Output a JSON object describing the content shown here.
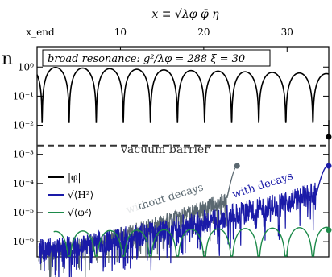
{
  "chart_data": {
    "type": "line",
    "title": "",
    "top_axis": {
      "label": "x ≡ √λφ φ̄ η",
      "ticks": [
        {
          "value": 0,
          "label": "x_end"
        },
        {
          "value": 10,
          "label": "10"
        },
        {
          "value": 20,
          "label": "20"
        },
        {
          "value": 30,
          "label": "30"
        }
      ],
      "xlim": [
        0,
        35
      ]
    },
    "yaxis": {
      "scale": "log",
      "ylim": [
        3e-07,
        5
      ],
      "ticks": [
        {
          "value": 1,
          "label": "10⁰"
        },
        {
          "value": 0.1,
          "label": "10⁻¹"
        },
        {
          "value": 0.01,
          "label": "10⁻²"
        },
        {
          "value": 0.001,
          "label": "10⁻³"
        },
        {
          "value": 0.0001,
          "label": "10⁻⁴"
        },
        {
          "value": 1e-05,
          "label": "10⁻⁵"
        },
        {
          "value": 1e-06,
          "label": "10⁻⁶"
        }
      ]
    },
    "header_box": "broad resonance:  g²/λφ = 288   ξ = 30",
    "vacuum_barrier": {
      "value": 0.002,
      "label": "vacuum barrier"
    },
    "annotations": [
      {
        "text": "without decays",
        "color": "#5a6870"
      },
      {
        "text": "with decays",
        "color": "#1a1aa8"
      }
    ],
    "series": [
      {
        "name": "|φ|",
        "color": "#000000",
        "endpoint": [
          35,
          0.004
        ]
      },
      {
        "name": "√⟨H²⟩",
        "color": "#1a1aa8",
        "endpoint": [
          35,
          0.0004
        ]
      },
      {
        "name": "√⟨φ²⟩",
        "color": "#1d8a4a",
        "endpoint": [
          35,
          2.5e-06
        ]
      },
      {
        "name": "",
        "color": "#5a6870",
        "endpoint": [
          24,
          0.0004
        ]
      }
    ],
    "grid": false,
    "legend_placement": "lower-left"
  },
  "left_edge_label": "n"
}
